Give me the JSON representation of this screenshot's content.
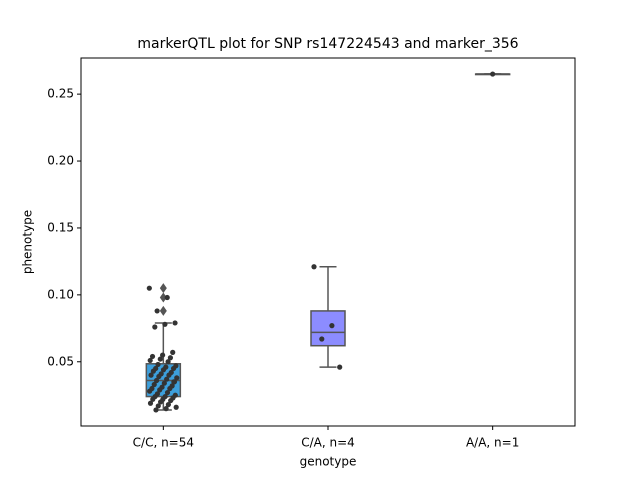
{
  "chart_data": {
    "type": "box",
    "title": "markerQTL plot for SNP rs147224543 and marker_356",
    "x_label": "genotype",
    "y_label": "phenotype",
    "categories": [
      "C/C, n=54",
      "C/A, n=4",
      "A/A, n=1"
    ],
    "colors": [
      "#3d9fdb",
      "#8c8cff",
      "#ff8ccc"
    ],
    "boxes": [
      {
        "whislo": 0.014,
        "q1": 0.024,
        "med": 0.036,
        "q3": 0.0485,
        "whishi": 0.079,
        "fliers": [
          0.088,
          0.098,
          0.105
        ]
      },
      {
        "whislo": 0.046,
        "q1": 0.062,
        "med": 0.072,
        "q3": 0.088,
        "whishi": 0.121,
        "fliers": []
      },
      {
        "whislo": 0.265,
        "q1": 0.265,
        "med": 0.265,
        "q3": 0.265,
        "whishi": 0.265,
        "fliers": []
      }
    ],
    "points": [
      [
        0.105,
        0.098,
        0.088,
        0.079,
        0.078,
        0.076,
        0.057,
        0.055,
        0.054,
        0.053,
        0.052,
        0.051,
        0.05,
        0.048,
        0.047,
        0.046,
        0.045,
        0.045,
        0.044,
        0.043,
        0.042,
        0.041,
        0.04,
        0.04,
        0.039,
        0.038,
        0.037,
        0.036,
        0.035,
        0.034,
        0.033,
        0.032,
        0.031,
        0.03,
        0.03,
        0.029,
        0.028,
        0.027,
        0.026,
        0.025,
        0.024,
        0.024,
        0.023,
        0.022,
        0.022,
        0.021,
        0.02,
        0.019,
        0.018,
        0.017,
        0.016,
        0.015,
        0.014,
        0.035
      ],
      [
        0.121,
        0.077,
        0.067,
        0.046
      ],
      [
        0.265
      ]
    ],
    "ylim": [
      0.002,
      0.277
    ],
    "yticks": [
      0.05,
      {
        "value": 0.1,
        "label": "0.10"
      },
      0.15,
      {
        "value": 0.2,
        "label": "0.20"
      },
      0.25
    ]
  }
}
